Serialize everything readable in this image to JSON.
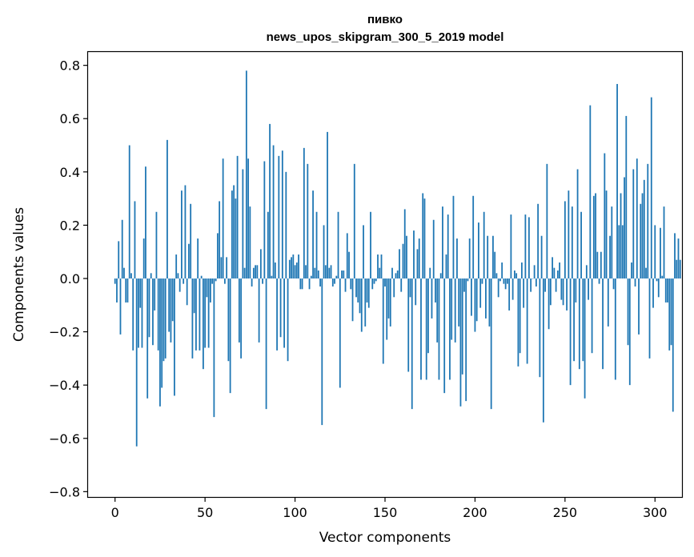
{
  "chart_data": {
    "type": "bar",
    "title": "пивко",
    "subtitle": "news_upos_skipgram_300_5_2019 model",
    "xlabel": "Vector components",
    "ylabel": "Components values",
    "xlim": [
      -15,
      315
    ],
    "ylim": [
      -0.82,
      0.85
    ],
    "xticks": [
      0,
      50,
      100,
      150,
      200,
      250,
      300
    ],
    "yticks": [
      -0.8,
      -0.6,
      -0.4,
      -0.2,
      0.0,
      0.2,
      0.4,
      0.6,
      0.8
    ],
    "ytick_labels": [
      "−0.8",
      "−0.6",
      "−0.4",
      "−0.2",
      "0.0",
      "0.2",
      "0.4",
      "0.6",
      "0.8"
    ],
    "xtick_labels": [
      "0",
      "50",
      "100",
      "150",
      "200",
      "250",
      "300"
    ],
    "bar_color": "#1f77b4",
    "grid": false,
    "values": [
      -0.02,
      -0.09,
      0.14,
      -0.21,
      0.22,
      0.04,
      -0.09,
      -0.09,
      0.5,
      0.02,
      -0.27,
      0.29,
      -0.63,
      -0.26,
      -0.11,
      -0.26,
      0.15,
      0.42,
      -0.45,
      -0.22,
      0.02,
      -0.25,
      -0.12,
      0.25,
      -0.27,
      -0.48,
      -0.41,
      -0.31,
      -0.3,
      0.52,
      -0.2,
      -0.24,
      -0.16,
      -0.44,
      0.09,
      0.02,
      -0.05,
      0.33,
      -0.02,
      0.35,
      -0.1,
      0.13,
      0.28,
      -0.3,
      -0.13,
      -0.27,
      0.15,
      -0.27,
      0.01,
      -0.34,
      -0.26,
      -0.07,
      -0.26,
      -0.09,
      -0.02,
      -0.52,
      -0.01,
      0.17,
      0.29,
      0.08,
      0.45,
      -0.02,
      0.08,
      -0.31,
      -0.43,
      0.33,
      0.35,
      0.3,
      0.46,
      -0.24,
      -0.3,
      0.41,
      0.04,
      0.78,
      0.45,
      0.27,
      -0.03,
      0.04,
      0.05,
      0.05,
      -0.24,
      0.11,
      -0.02,
      0.44,
      -0.49,
      0.25,
      0.58,
      0.01,
      0.5,
      0.06,
      -0.27,
      0.46,
      -0.22,
      0.48,
      -0.26,
      0.4,
      -0.31,
      0.07,
      0.08,
      0.09,
      0.05,
      0.06,
      0.09,
      -0.04,
      -0.04,
      0.49,
      0.05,
      0.43,
      -0.04,
      0.01,
      0.33,
      0.04,
      0.25,
      0.03,
      -0.03,
      -0.55,
      0.2,
      0.05,
      0.55,
      0.04,
      0.05,
      -0.03,
      -0.02,
      0.01,
      0.25,
      -0.41,
      0.03,
      0.03,
      -0.05,
      0.17,
      0.1,
      -0.04,
      -0.16,
      0.43,
      -0.07,
      -0.09,
      -0.13,
      -0.2,
      0.2,
      -0.18,
      -0.09,
      -0.11,
      0.25,
      -0.04,
      -0.02,
      -0.01,
      0.09,
      0.04,
      0.09,
      -0.32,
      -0.03,
      -0.23,
      -0.15,
      -0.18,
      0.04,
      -0.07,
      0.02,
      0.03,
      0.11,
      -0.05,
      0.13,
      0.26,
      0.16,
      -0.35,
      -0.07,
      -0.49,
      0.18,
      -0.1,
      0.11,
      0.15,
      -0.38,
      0.32,
      0.3,
      -0.38,
      -0.28,
      0.04,
      -0.15,
      0.22,
      -0.09,
      -0.24,
      -0.38,
      0.02,
      0.27,
      -0.43,
      0.09,
      0.24,
      -0.38,
      -0.23,
      0.31,
      -0.24,
      0.15,
      -0.18,
      -0.48,
      -0.36,
      -0.05,
      -0.46,
      -0.01,
      0.15,
      -0.14,
      0.31,
      -0.2,
      -0.16,
      0.21,
      -0.11,
      -0.02,
      0.25,
      -0.15,
      0.16,
      -0.18,
      -0.49,
      0.16,
      0.1,
      0.02,
      -0.07,
      -0.01,
      0.06,
      -0.02,
      -0.04,
      -0.02,
      -0.12,
      0.24,
      -0.08,
      0.03,
      0.02,
      -0.33,
      -0.28,
      0.06,
      -0.11,
      0.24,
      -0.32,
      0.23,
      -0.05,
      0.0,
      0.05,
      -0.03,
      0.28,
      -0.37,
      0.16,
      -0.54,
      -0.05,
      0.43,
      -0.19,
      -0.1,
      0.08,
      0.04,
      -0.05,
      0.03,
      0.06,
      -0.08,
      -0.1,
      0.29,
      -0.12,
      0.33,
      -0.4,
      0.27,
      -0.31,
      -0.09,
      0.41,
      -0.34,
      0.25,
      -0.31,
      -0.45,
      0.05,
      -0.08,
      0.65,
      -0.28,
      0.31,
      0.32,
      0.1,
      -0.02,
      0.1,
      -0.34,
      0.47,
      0.33,
      -0.18,
      0.16,
      0.27,
      -0.04,
      -0.38,
      0.73,
      0.2,
      0.32,
      0.2,
      0.38,
      0.61,
      -0.25,
      -0.4,
      0.06,
      0.41,
      -0.03,
      0.45,
      -0.21,
      0.28,
      0.32,
      0.37,
      0.04,
      0.43,
      -0.3,
      0.68,
      -0.11,
      0.2,
      -0.01,
      -0.07,
      0.19,
      0.01,
      0.27,
      -0.09,
      -0.09,
      -0.27,
      -0.25,
      -0.5,
      0.17,
      0.07,
      0.15,
      0.07
    ]
  }
}
